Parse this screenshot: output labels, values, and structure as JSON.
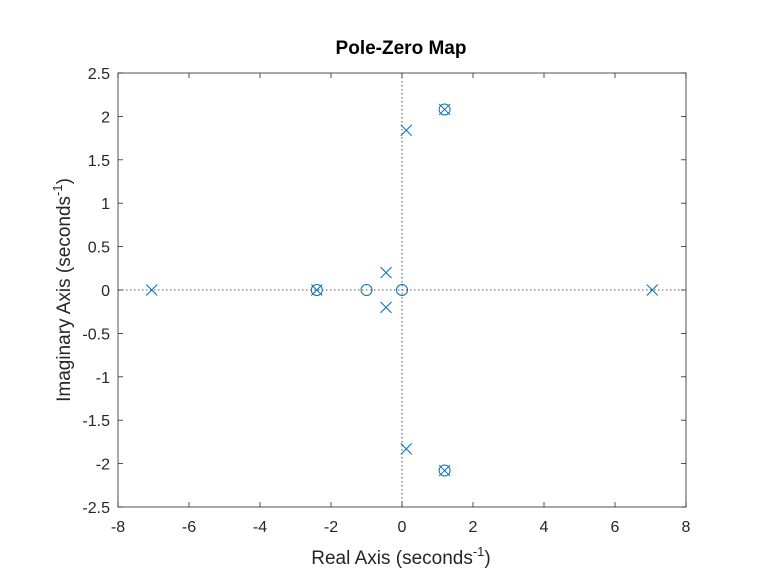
{
  "chart_data": {
    "type": "scatter",
    "title": "Pole-Zero Map",
    "xlabel": {
      "main": "Real Axis (seconds",
      "sup": "-1",
      "close": ")"
    },
    "ylabel": {
      "main": "Imaginary Axis (seconds",
      "sup": "-1",
      "close": ")"
    },
    "xlim": [
      -8,
      8
    ],
    "ylim": [
      -2.5,
      2.5
    ],
    "xticks": [
      -8,
      -6,
      -4,
      -2,
      0,
      2,
      4,
      6,
      8
    ],
    "yticks": [
      -2.5,
      -2,
      -1.5,
      -1,
      -0.5,
      0,
      0.5,
      1,
      1.5,
      2,
      2.5
    ],
    "xtick_labels": [
      "-8",
      "-6",
      "-4",
      "-2",
      "0",
      "2",
      "4",
      "6",
      "8"
    ],
    "ytick_labels": [
      "-2.5",
      "-2",
      "-1.5",
      "-1",
      "-0.5",
      "0",
      "0.5",
      "1",
      "1.5",
      "2",
      "2.5"
    ],
    "zero_lines": true,
    "grid": false,
    "color": "#0072BD",
    "poles": [
      {
        "x": -7.05,
        "y": 0
      },
      {
        "x": 7.05,
        "y": 0
      },
      {
        "x": -2.4,
        "y": 0
      },
      {
        "x": -0.45,
        "y": 0.2
      },
      {
        "x": -0.45,
        "y": -0.2
      },
      {
        "x": 0.12,
        "y": 1.84
      },
      {
        "x": 0.12,
        "y": -1.83
      },
      {
        "x": 1.2,
        "y": 2.08
      },
      {
        "x": 1.2,
        "y": -2.08
      }
    ],
    "zeros": [
      {
        "x": -2.4,
        "y": 0
      },
      {
        "x": -1.0,
        "y": 0
      },
      {
        "x": 0,
        "y": 0
      },
      {
        "x": 1.2,
        "y": 2.08
      },
      {
        "x": 1.2,
        "y": -2.08
      }
    ]
  }
}
